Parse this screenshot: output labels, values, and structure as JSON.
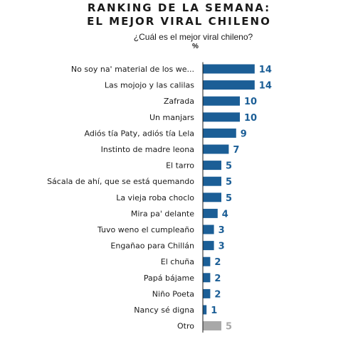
{
  "header": {
    "title_line_1": "RANKING DE LA SEMANA:",
    "title_line_2": "EL MEJOR VIRAL CHILENO",
    "subtitle": "¿Cuál es el mejor viral chileno?",
    "unit": "%"
  },
  "colors": {
    "bar": "#1b5e96",
    "bar_other": "#a8a8a8",
    "value_text": "#1b5e96",
    "value_text_other": "#a8a8a8",
    "axis": "#1a1a1a"
  },
  "chart_data": {
    "type": "bar",
    "orientation": "horizontal",
    "title": "RANKING DE LA SEMANA: EL MEJOR VIRAL CHILENO",
    "subtitle": "¿Cuál es el mejor viral chileno?",
    "xlabel": "%",
    "ylabel": "",
    "xlim": [
      0,
      14
    ],
    "grid": false,
    "categories": [
      "No soy na' material de los we...",
      "Las mojojo y las calilas",
      "Zafrada",
      "Un manjars",
      "Adiós tía Paty, adiós tía Lela",
      "Instinto de madre leona",
      "El tarro",
      "Sácala de ahí, que se está quemando",
      "La vieja roba choclo",
      "Mira pa' delante",
      "Tuvo weno el cumpleaño",
      "Engañao para Chillán",
      "El chuña",
      "Papá bájame",
      "Niño Poeta",
      "Nancy sé digna",
      "Otro"
    ],
    "values": [
      14,
      14,
      10,
      10,
      9,
      7,
      5,
      5,
      5,
      4,
      3,
      3,
      2,
      2,
      2,
      1,
      5
    ],
    "highlight": [
      true,
      true,
      true,
      true,
      true,
      true,
      true,
      true,
      true,
      true,
      true,
      true,
      true,
      true,
      true,
      true,
      false
    ]
  }
}
